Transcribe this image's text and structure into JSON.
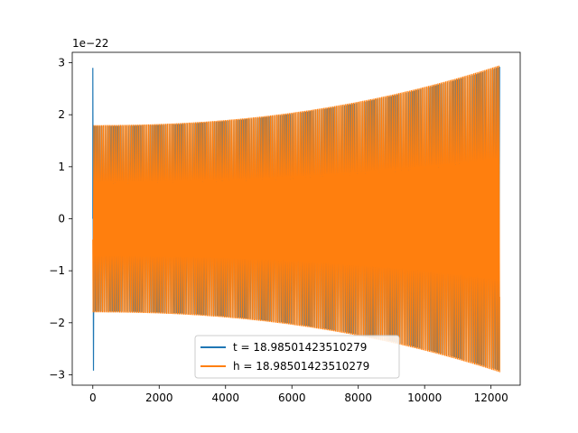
{
  "chart_data": {
    "type": "line",
    "title": "",
    "xlabel": "",
    "ylabel": "",
    "y_offset_label": "1e−22",
    "xlim": [
      -620,
      12880
    ],
    "ylim": [
      -3.2,
      3.2
    ],
    "x_ticks": [
      0,
      2000,
      4000,
      6000,
      8000,
      10000,
      12000
    ],
    "x_tick_labels": [
      "0",
      "2000",
      "4000",
      "6000",
      "8000",
      "10000",
      "12000"
    ],
    "y_ticks": [
      -3,
      -2,
      -1,
      0,
      1,
      2,
      3
    ],
    "y_tick_labels": [
      "−3",
      "−2",
      "−1",
      "0",
      "1",
      "2",
      "3"
    ],
    "grid": false,
    "legend_position": "lower center",
    "signal": {
      "x_start": 0,
      "x_end": 12260,
      "envelope_start": 1.8,
      "envelope_end": 2.95
    },
    "series": [
      {
        "name": "t = 18.98501423510279",
        "color": "#1f77b4",
        "spike_x": 0,
        "spike_max": 2.9,
        "spike_min": -2.92
      },
      {
        "name": "h = 18.98501423510279",
        "color": "#ff7f0e"
      }
    ]
  }
}
